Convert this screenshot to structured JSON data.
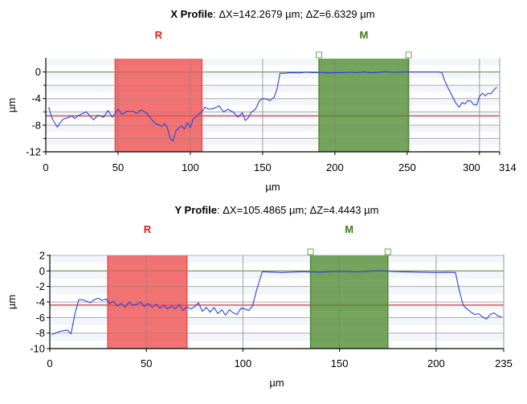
{
  "chart_data": [
    {
      "type": "line",
      "title": "X Profile",
      "title_detail": ": ΔX=142.2679 µm; ΔZ=6.6329 µm",
      "xlabel": "µm",
      "ylabel": "µm",
      "xlim": [
        0,
        314
      ],
      "ylim": [
        -12,
        2
      ],
      "x_ticks": [
        0,
        50,
        100,
        150,
        200,
        250,
        300,
        314
      ],
      "x_tick_labels": [
        "0",
        "50",
        "100",
        "150",
        "200",
        "250",
        "300",
        "314"
      ],
      "y_ticks": [
        0,
        -4,
        -8,
        -12
      ],
      "y_minor_ticks": [
        -2,
        -6,
        -10
      ],
      "grid": true,
      "regions": [
        {
          "label": "R",
          "x_start": 48,
          "x_end": 108,
          "color": "#ef4b4b"
        },
        {
          "label": "M",
          "x_start": 189,
          "x_end": 251,
          "color": "#4e8a2e"
        }
      ],
      "reference_lines": [
        {
          "y": 0,
          "color": "#6f9c35"
        },
        {
          "y": -6.6,
          "color": "#c9413d"
        }
      ],
      "series": [
        {
          "color": "#3040d8",
          "x": [
            2,
            4,
            6,
            8,
            10,
            12,
            15,
            18,
            20,
            22,
            25,
            28,
            30,
            33,
            36,
            40,
            43,
            46,
            50,
            53,
            56,
            60,
            63,
            66,
            70,
            73,
            76,
            78,
            80,
            82,
            84,
            86,
            88,
            90,
            92,
            94,
            96,
            98,
            100,
            102,
            104,
            106,
            108,
            110,
            113,
            116,
            120,
            123,
            126,
            130,
            133,
            136,
            138,
            140,
            142,
            145,
            148,
            150,
            153,
            155,
            158,
            160,
            162,
            165,
            170,
            175,
            180,
            185,
            190,
            195,
            200,
            205,
            210,
            215,
            220,
            225,
            230,
            235,
            240,
            245,
            250,
            255,
            260,
            265,
            268,
            270,
            272,
            274,
            276,
            278,
            280,
            282,
            284,
            286,
            288,
            290,
            292,
            294,
            296,
            298,
            300,
            302,
            304,
            306,
            308,
            310,
            312
          ],
          "y": [
            -5.3,
            -6.8,
            -7.6,
            -8.3,
            -7.6,
            -7.1,
            -6.9,
            -6.6,
            -7.0,
            -6.6,
            -6.3,
            -6.0,
            -6.5,
            -7.2,
            -6.5,
            -6.8,
            -5.8,
            -6.8,
            -5.6,
            -6.4,
            -5.9,
            -5.9,
            -6.2,
            -5.7,
            -6.2,
            -7.1,
            -7.8,
            -7.9,
            -8.2,
            -7.8,
            -8.3,
            -9.9,
            -10.4,
            -8.9,
            -8.4,
            -8.1,
            -8.6,
            -7.6,
            -8.4,
            -7.1,
            -6.7,
            -6.3,
            -6.0,
            -5.3,
            -5.6,
            -5.5,
            -5.1,
            -6.0,
            -5.6,
            -6.1,
            -6.8,
            -6.1,
            -7.3,
            -6.9,
            -6.1,
            -5.6,
            -4.3,
            -4.0,
            -4.1,
            -4.3,
            -3.8,
            -2.5,
            -0.2,
            -0.2,
            -0.1,
            -0.15,
            -0.05,
            -0.1,
            -0.08,
            -0.15,
            -0.1,
            -0.1,
            -0.05,
            -0.1,
            0.0,
            -0.12,
            -0.08,
            0.05,
            -0.05,
            -0.03,
            0.0,
            0.0,
            0.0,
            0.0,
            0.0,
            0.0,
            0.0,
            -0.1,
            -1.3,
            -2.3,
            -3.1,
            -4.0,
            -4.8,
            -5.3,
            -4.6,
            -4.8,
            -4.3,
            -4.4,
            -4.9,
            -5.0,
            -3.7,
            -3.2,
            -3.6,
            -3.2,
            -3.3,
            -2.7,
            -2.3
          ]
        }
      ]
    },
    {
      "type": "line",
      "title": "Y Profile",
      "title_detail": ": ΔX=105.4865 µm; ΔZ=4.4443 µm",
      "xlabel": "µm",
      "ylabel": "µm",
      "xlim": [
        0,
        235
      ],
      "ylim": [
        -10,
        2
      ],
      "x_ticks": [
        0,
        50,
        100,
        150,
        200,
        235
      ],
      "x_tick_labels": [
        "0",
        "50",
        "100",
        "150",
        "200",
        "235"
      ],
      "y_ticks": [
        2,
        0,
        -2,
        -4,
        -6,
        -8,
        -10
      ],
      "y_minor_ticks": [],
      "grid": true,
      "regions": [
        {
          "label": "R",
          "x_start": 30,
          "x_end": 71,
          "color": "#ef4b4b"
        },
        {
          "label": "M",
          "x_start": 135,
          "x_end": 175,
          "color": "#4e8a2e"
        }
      ],
      "reference_lines": [
        {
          "y": 0,
          "color": "#6f9c35"
        },
        {
          "y": -4.4,
          "color": "#c9413d"
        }
      ],
      "series": [
        {
          "color": "#3040d8",
          "x": [
            1,
            3,
            5,
            7,
            9,
            11,
            13,
            15,
            17,
            19,
            21,
            23,
            25,
            27,
            29,
            31,
            33,
            35,
            37,
            39,
            41,
            43,
            45,
            47,
            49,
            51,
            53,
            55,
            57,
            59,
            61,
            63,
            65,
            67,
            69,
            71,
            73,
            75,
            77,
            79,
            81,
            83,
            85,
            87,
            89,
            91,
            93,
            95,
            97,
            99,
            101,
            103,
            105,
            107,
            110,
            120,
            130,
            140,
            150,
            160,
            170,
            180,
            190,
            200,
            205,
            210,
            212,
            214,
            216,
            218,
            220,
            222,
            224,
            226,
            228,
            230,
            232,
            234
          ],
          "y": [
            -8.2,
            -8.0,
            -7.8,
            -7.7,
            -7.6,
            -8.1,
            -5.5,
            -3.7,
            -3.7,
            -3.9,
            -4.1,
            -3.7,
            -3.5,
            -3.8,
            -3.6,
            -4.2,
            -3.9,
            -4.5,
            -4.2,
            -4.7,
            -4.0,
            -4.4,
            -4.3,
            -4.0,
            -4.6,
            -4.2,
            -4.7,
            -4.3,
            -4.8,
            -4.4,
            -4.9,
            -4.5,
            -4.9,
            -4.3,
            -5.1,
            -4.6,
            -4.9,
            -4.6,
            -4.1,
            -5.2,
            -4.7,
            -5.3,
            -4.7,
            -5.5,
            -5.0,
            -5.7,
            -5.0,
            -5.4,
            -5.6,
            -4.8,
            -4.9,
            -5.1,
            -4.5,
            -2.5,
            -0.1,
            -0.2,
            -0.1,
            -0.15,
            -0.05,
            -0.12,
            0.05,
            -0.1,
            -0.15,
            -0.2,
            -0.18,
            -0.2,
            -2.5,
            -4.4,
            -4.9,
            -5.3,
            -5.6,
            -5.5,
            -5.9,
            -6.2,
            -5.6,
            -5.4,
            -5.8,
            -5.9
          ]
        }
      ]
    }
  ]
}
